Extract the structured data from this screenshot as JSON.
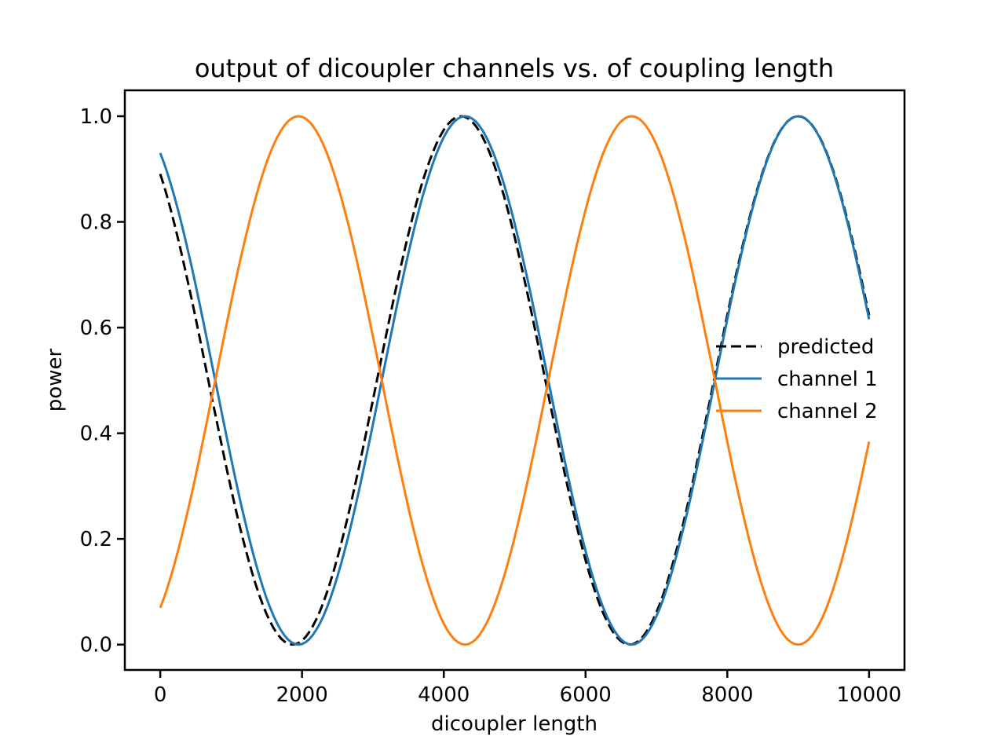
{
  "figure": {
    "background": "#ffffff",
    "frame_color": "#000000"
  },
  "chart_data": {
    "type": "line",
    "title": "output of dicoupler channels vs. of coupling length",
    "xlabel": "dicoupler length",
    "ylabel": "power",
    "xlim": [
      -500,
      10500
    ],
    "ylim": [
      -0.048,
      1.049
    ],
    "grid": false,
    "xticks": [
      {
        "v": 0,
        "label": "0"
      },
      {
        "v": 2000,
        "label": "2000"
      },
      {
        "v": 4000,
        "label": "4000"
      },
      {
        "v": 6000,
        "label": "6000"
      },
      {
        "v": 8000,
        "label": "8000"
      },
      {
        "v": 10000,
        "label": "10000"
      }
    ],
    "yticks": [
      {
        "v": 0.0,
        "label": "0.0"
      },
      {
        "v": 0.2,
        "label": "0.2"
      },
      {
        "v": 0.4,
        "label": "0.4"
      },
      {
        "v": 0.6,
        "label": "0.6"
      },
      {
        "v": 0.8,
        "label": "0.8"
      },
      {
        "v": 1.0,
        "label": "1.0"
      }
    ],
    "legend": {
      "position": "center right",
      "frame": false,
      "items": [
        {
          "label": "predicted"
        },
        {
          "label": "channel 1"
        },
        {
          "label": "channel 2"
        }
      ]
    },
    "series": [
      {
        "name": "predicted",
        "color": "#000000",
        "line_style": "dashed",
        "linewidth": 3,
        "model": {
          "type": "cos2",
          "amplitude": 1.0,
          "period": 4755,
          "x_peak": 9000,
          "x_start": 0,
          "x_end": 10000
        },
        "points": [
          [
            0,
            0.891
          ],
          [
            1000,
            0.294
          ],
          [
            1868,
            0.0
          ],
          [
            2000,
            0.008
          ],
          [
            3000,
            0.461
          ],
          [
            4000,
            0.974
          ],
          [
            4245,
            1.0
          ],
          [
            5000,
            0.772
          ],
          [
            6000,
            0.159
          ],
          [
            6623,
            0.0
          ],
          [
            7000,
            0.061
          ],
          [
            8000,
            0.624
          ],
          [
            9000,
            1.0
          ],
          [
            10000,
            0.624
          ]
        ]
      },
      {
        "name": "channel 1",
        "color": "#1f77b4",
        "line_style": "solid",
        "linewidth": 3,
        "model": {
          "type": "cos2",
          "amplitude": 1.0,
          "period": 4700,
          "x_peak": 9000,
          "x_start": 0,
          "x_end": 10000
        },
        "points": [
          [
            0,
            0.93
          ],
          [
            1000,
            0.352
          ],
          [
            1950,
            0.0
          ],
          [
            2000,
            0.001
          ],
          [
            3000,
            0.418
          ],
          [
            4000,
            0.96
          ],
          [
            4300,
            1.0
          ],
          [
            5000,
            0.796
          ],
          [
            6000,
            0.178
          ],
          [
            6650,
            0.0
          ],
          [
            7000,
            0.054
          ],
          [
            8000,
            0.617
          ],
          [
            9000,
            1.0
          ],
          [
            10000,
            0.617
          ]
        ]
      },
      {
        "name": "channel 2",
        "color": "#ff7f0e",
        "line_style": "solid",
        "linewidth": 3,
        "model": {
          "type": "cos2_complement",
          "amplitude": 1.0,
          "period": 4700,
          "x_peak": 9000,
          "x_start": 0,
          "x_end": 10000
        },
        "points": [
          [
            0,
            0.07
          ],
          [
            1000,
            0.648
          ],
          [
            1950,
            1.0
          ],
          [
            2000,
            0.999
          ],
          [
            3000,
            0.582
          ],
          [
            4000,
            0.04
          ],
          [
            4300,
            0.0
          ],
          [
            5000,
            0.204
          ],
          [
            6000,
            0.822
          ],
          [
            6650,
            1.0
          ],
          [
            7000,
            0.946
          ],
          [
            8000,
            0.383
          ],
          [
            9000,
            0.0
          ],
          [
            10000,
            0.383
          ]
        ]
      }
    ]
  }
}
